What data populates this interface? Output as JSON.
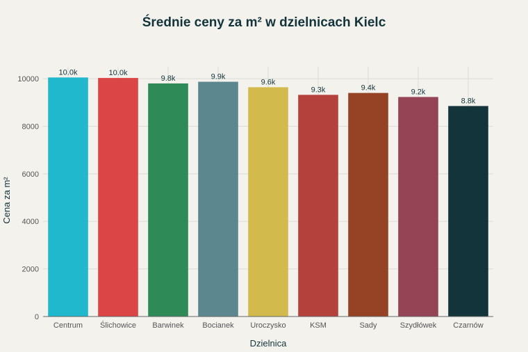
{
  "chart_data": {
    "type": "bar",
    "title": "Średnie ceny za m² w dzielnicach Kielc",
    "xlabel": "Dzielnica",
    "ylabel": "Cena za m²",
    "ylim": [
      0,
      10500
    ],
    "yticks": [
      0,
      2000,
      4000,
      6000,
      8000,
      10000
    ],
    "grid": true,
    "categories": [
      "Centrum",
      "Ślichowice",
      "Barwinek",
      "Bocianek",
      "Uroczysko",
      "KSM",
      "Sady",
      "Szydłówek",
      "Czarnów"
    ],
    "values": [
      10050,
      10030,
      9800,
      9870,
      9640,
      9320,
      9400,
      9230,
      8850
    ],
    "data_labels": [
      "10.0k",
      "10.0k",
      "9.8k",
      "9.9k",
      "9.6k",
      "9.3k",
      "9.4k",
      "9.2k",
      "8.8k"
    ],
    "colors": [
      "#1fb8cd",
      "#db4545",
      "#2e8b57",
      "#5d878f",
      "#d2ba4c",
      "#b4413c",
      "#964325",
      "#944454",
      "#13343b"
    ]
  }
}
